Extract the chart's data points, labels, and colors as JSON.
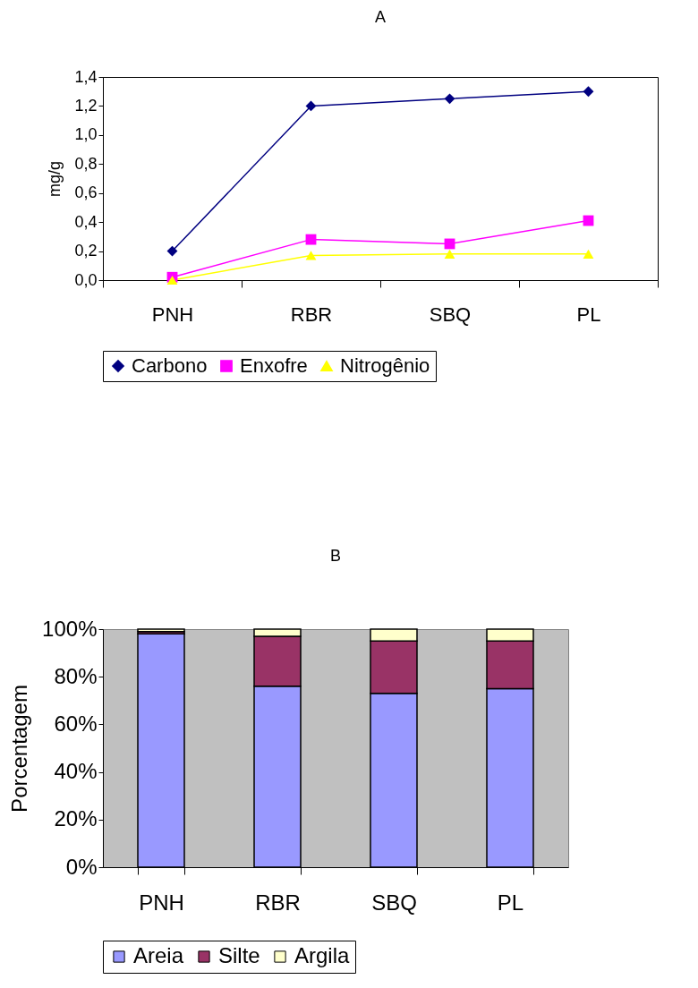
{
  "chart_data": [
    {
      "type": "line",
      "title": "A",
      "ylabel": "mg/g",
      "categories": [
        "PNH",
        "RBR",
        "SBQ",
        "PL"
      ],
      "series": [
        {
          "name": "Carbono",
          "color": "#000080",
          "marker": "diamond",
          "values": [
            0.2,
            1.2,
            1.25,
            1.3
          ]
        },
        {
          "name": "Enxofre",
          "color": "#ff00ff",
          "marker": "square",
          "values": [
            0.02,
            0.28,
            0.25,
            0.41
          ]
        },
        {
          "name": "Nitrogênio",
          "color": "#ffff00",
          "marker": "triangle",
          "values": [
            0.0,
            0.17,
            0.18,
            0.18
          ]
        }
      ],
      "ylim": [
        0,
        1.4
      ],
      "yticks": [
        {
          "value": 0,
          "label": "0,0"
        },
        {
          "value": 0.2,
          "label": "0,2"
        },
        {
          "value": 0.4,
          "label": "0,4"
        },
        {
          "value": 0.6,
          "label": "0,6"
        },
        {
          "value": 0.8,
          "label": "0,8"
        },
        {
          "value": 1.0,
          "label": "1,0"
        },
        {
          "value": 1.2,
          "label": "1,2"
        },
        {
          "value": 1.4,
          "label": "1,4"
        }
      ],
      "grid": false,
      "legend": "bottom",
      "line_style": "solid"
    },
    {
      "type": "bar",
      "stacked": true,
      "title": "B",
      "ylabel": "Porcentagem",
      "categories": [
        "PNH",
        "RBR",
        "SBQ",
        "PL"
      ],
      "series": [
        {
          "name": "Areia",
          "color": "#9999ff",
          "values": [
            98,
            76,
            73,
            75
          ]
        },
        {
          "name": "Silte",
          "color": "#993366",
          "values": [
            1,
            21,
            22,
            20
          ]
        },
        {
          "name": "Argila",
          "color": "#ffffcc",
          "values": [
            1,
            3,
            5,
            5
          ]
        }
      ],
      "ylim": [
        0,
        100
      ],
      "yticks": [
        {
          "value": 0,
          "label": "0%"
        },
        {
          "value": 20,
          "label": "20%"
        },
        {
          "value": 40,
          "label": "40%"
        },
        {
          "value": 60,
          "label": "60%"
        },
        {
          "value": 80,
          "label": "80%"
        },
        {
          "value": 100,
          "label": "100%"
        }
      ],
      "grid": false,
      "legend": "bottom"
    }
  ]
}
